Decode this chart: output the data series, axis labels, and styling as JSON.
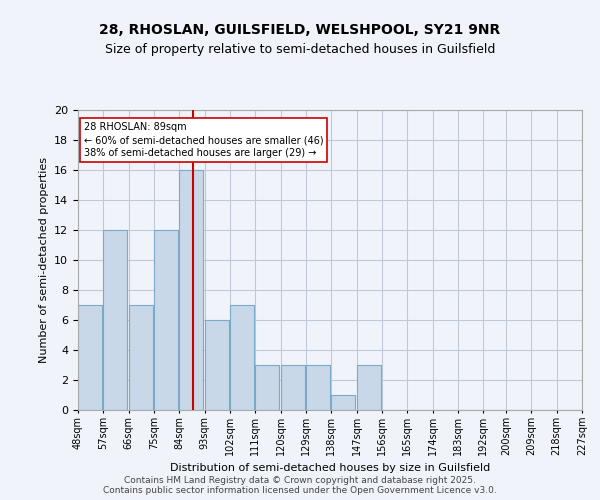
{
  "title_line1": "28, RHOSLAN, GUILSFIELD, WELSHPOOL, SY21 9NR",
  "title_line2": "Size of property relative to semi-detached houses in Guilsfield",
  "xlabel": "Distribution of semi-detached houses by size in Guilsfield",
  "ylabel": "Number of semi-detached properties",
  "bins": [
    48,
    57,
    66,
    75,
    84,
    93,
    102,
    111,
    120,
    129,
    138,
    147,
    156,
    165,
    174,
    183,
    192,
    200,
    209,
    218,
    227
  ],
  "bar_labels": [
    "48sqm",
    "57sqm",
    "66sqm",
    "75sqm",
    "84sqm",
    "93sqm",
    "102sqm",
    "111sqm",
    "120sqm",
    "129sqm",
    "138sqm",
    "147sqm",
    "156sqm",
    "165sqm",
    "174sqm",
    "183sqm",
    "192sqm",
    "200sqm",
    "209sqm",
    "218sqm",
    "227sqm"
  ],
  "values": [
    7,
    12,
    7,
    12,
    16,
    6,
    7,
    3,
    3,
    3,
    1,
    3,
    0,
    0,
    0,
    0,
    0,
    0,
    0,
    0
  ],
  "bar_color": "#c8d8e8",
  "bar_edgecolor": "#7aaac8",
  "subject_value": 89,
  "vline_color": "#cc0000",
  "annotation_text": "28 RHOSLAN: 89sqm\n← 60% of semi-detached houses are smaller (46)\n38% of semi-detached houses are larger (29) →",
  "annotation_box_color": "#ffffff",
  "annotation_box_edgecolor": "#cc0000",
  "grid_color": "#c0c8d8",
  "background_color": "#f0f4fa",
  "footer_text": "Contains HM Land Registry data © Crown copyright and database right 2025.\nContains public sector information licensed under the Open Government Licence v3.0.",
  "ylim": [
    0,
    20
  ],
  "yticks": [
    0,
    2,
    4,
    6,
    8,
    10,
    12,
    14,
    16,
    18,
    20
  ]
}
